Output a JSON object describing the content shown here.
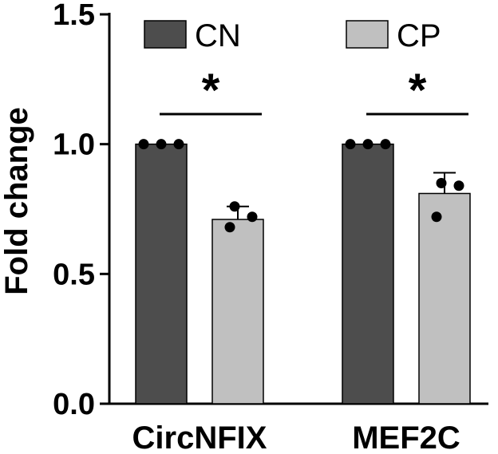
{
  "chart_data": {
    "type": "bar",
    "categories": [
      "CircNFIX",
      "MEF2C"
    ],
    "ylabel": "Fold change",
    "ylim": [
      0,
      1.5
    ],
    "yticks": [
      "0.0",
      "0.5",
      "1.0",
      "1.5"
    ],
    "ytick_values": [
      0,
      0.5,
      1.0,
      1.5
    ],
    "legend_position": "top",
    "series": [
      {
        "name": "CN",
        "color": "#4d4d4d",
        "values": [
          1.0,
          1.0
        ],
        "error": [
          0,
          0
        ],
        "points": [
          [
            1.0,
            1.0,
            1.0
          ],
          [
            1.0,
            1.0,
            1.0
          ]
        ]
      },
      {
        "name": "CP",
        "color": "#c0c0c0",
        "values": [
          0.71,
          0.81
        ],
        "error": [
          0.05,
          0.08
        ],
        "points": [
          [
            0.76,
            0.72,
            0.68
          ],
          [
            0.85,
            0.84,
            0.72
          ]
        ]
      }
    ],
    "significance": [
      {
        "category": "CircNFIX",
        "label": "*"
      },
      {
        "category": "MEF2C",
        "label": "*"
      }
    ]
  }
}
